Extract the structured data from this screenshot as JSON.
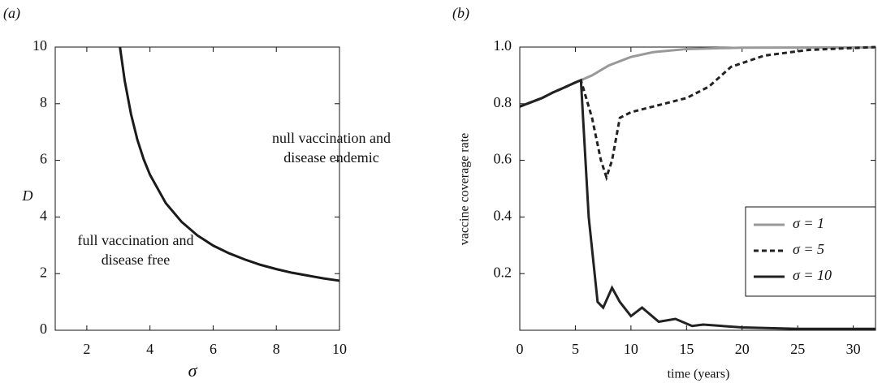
{
  "chart_data": [
    {
      "type": "line",
      "panel_label": "(a)",
      "xlabel": "σ",
      "ylabel": "D",
      "xlim": [
        1,
        10
      ],
      "xticks": [
        2,
        4,
        6,
        8,
        10
      ],
      "ylim": [
        0,
        10
      ],
      "yticks": [
        0,
        2,
        4,
        6,
        8,
        10
      ],
      "annotations": [
        [
          "null vaccination and",
          "disease endemic"
        ],
        [
          "full vaccination and",
          "disease free"
        ]
      ],
      "series": [
        {
          "color": "#1a1a1a",
          "linestyle": "solid",
          "x": [
            3.05,
            3.2,
            3.4,
            3.6,
            3.8,
            4,
            4.5,
            5,
            5.5,
            6,
            6.5,
            7,
            7.5,
            8,
            8.5,
            9,
            9.5,
            10
          ],
          "values": [
            10.0,
            8.81,
            7.63,
            6.73,
            6.04,
            5.49,
            4.49,
            3.83,
            3.35,
            2.99,
            2.72,
            2.5,
            2.31,
            2.16,
            2.03,
            1.93,
            1.83,
            1.75
          ]
        }
      ]
    },
    {
      "type": "line",
      "panel_label": "(b)",
      "xlabel": "time (years)",
      "ylabel": "vaccine coverage rate",
      "xlim": [
        0,
        32
      ],
      "xticks": [
        0,
        5,
        10,
        15,
        20,
        25,
        30
      ],
      "ylim": [
        0,
        1
      ],
      "yticks": [
        0.2,
        0.4,
        0.6,
        {
          "value": 0.8,
          "label": "0.8"
        },
        {
          "value": 1,
          "label": "1.0"
        }
      ],
      "legend": "right",
      "series": [
        {
          "name": "σ = 1",
          "color": "#999999",
          "linestyle": "solid",
          "x": [
            0,
            1,
            2,
            3,
            4,
            5,
            5.5,
            6.5,
            8,
            10,
            12,
            15,
            20,
            32
          ],
          "values": [
            0.79,
            0.805,
            0.82,
            0.84,
            0.857,
            0.875,
            0.883,
            0.9,
            0.935,
            0.965,
            0.982,
            0.993,
            0.998,
            0.999
          ]
        },
        {
          "name": "σ = 5",
          "color": "#222222",
          "linestyle": "dashed",
          "x": [
            0,
            1,
            2,
            3,
            4,
            5,
            5.5,
            6.5,
            7.3,
            7.8,
            8.3,
            9,
            10,
            12,
            15,
            17,
            19,
            22,
            26,
            32
          ],
          "values": [
            0.79,
            0.805,
            0.82,
            0.84,
            0.857,
            0.875,
            0.883,
            0.75,
            0.6,
            0.54,
            0.6,
            0.75,
            0.77,
            0.79,
            0.82,
            0.86,
            0.93,
            0.97,
            0.99,
            1.0
          ]
        },
        {
          "name": "σ = 10",
          "color": "#222222",
          "linestyle": "solid",
          "x": [
            0,
            1,
            2,
            3,
            4,
            5,
            5.5,
            6.2,
            7,
            7.5,
            8.3,
            9,
            10,
            11,
            12.5,
            14,
            15.5,
            16.5,
            20,
            25,
            32
          ],
          "values": [
            0.79,
            0.805,
            0.82,
            0.84,
            0.857,
            0.875,
            0.883,
            0.4,
            0.1,
            0.08,
            0.15,
            0.1,
            0.05,
            0.08,
            0.03,
            0.04,
            0.015,
            0.02,
            0.01,
            0.005,
            0.005
          ]
        }
      ]
    }
  ]
}
